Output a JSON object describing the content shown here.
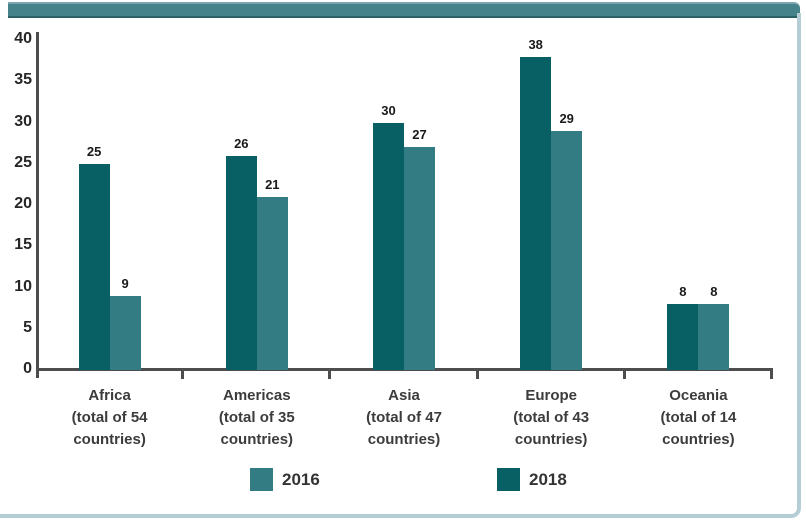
{
  "frame": {
    "top_strip_color": "#46828a",
    "border_color": "#b5ced6"
  },
  "chart_data": {
    "type": "bar",
    "title": "",
    "xlabel": "",
    "ylabel": "",
    "categories": [
      "Africa (total of 54 countries)",
      "Americas (total of 35 countries)",
      "Asia (total of 47 countries)",
      "Europe (total of 43 countries)",
      "Oceania (total of 14 countries)"
    ],
    "category_lines": [
      [
        "Africa",
        "(total of 54",
        "countries)"
      ],
      [
        "Americas",
        "(total of 35",
        "countries)"
      ],
      [
        "Asia",
        "(total of 47",
        "countries)"
      ],
      [
        "Europe",
        "(total of 43",
        "countries)"
      ],
      [
        "Oceania",
        "(total of 14",
        "countries)"
      ]
    ],
    "series": [
      {
        "name": "2018",
        "color": "#085f64",
        "values": [
          25,
          26,
          30,
          38,
          8
        ]
      },
      {
        "name": "2016",
        "color": "#347c84",
        "values": [
          9,
          21,
          27,
          29,
          8
        ]
      }
    ],
    "legend": [
      {
        "label": "2016",
        "color": "#347c84"
      },
      {
        "label": "2018",
        "color": "#085f64"
      }
    ],
    "legend_position": "bottom",
    "y_ticks": [
      0,
      5,
      10,
      15,
      20,
      25,
      30,
      35,
      40
    ],
    "ylim": [
      0,
      40
    ],
    "grid": false,
    "axis_color": "#4d4d4d"
  }
}
